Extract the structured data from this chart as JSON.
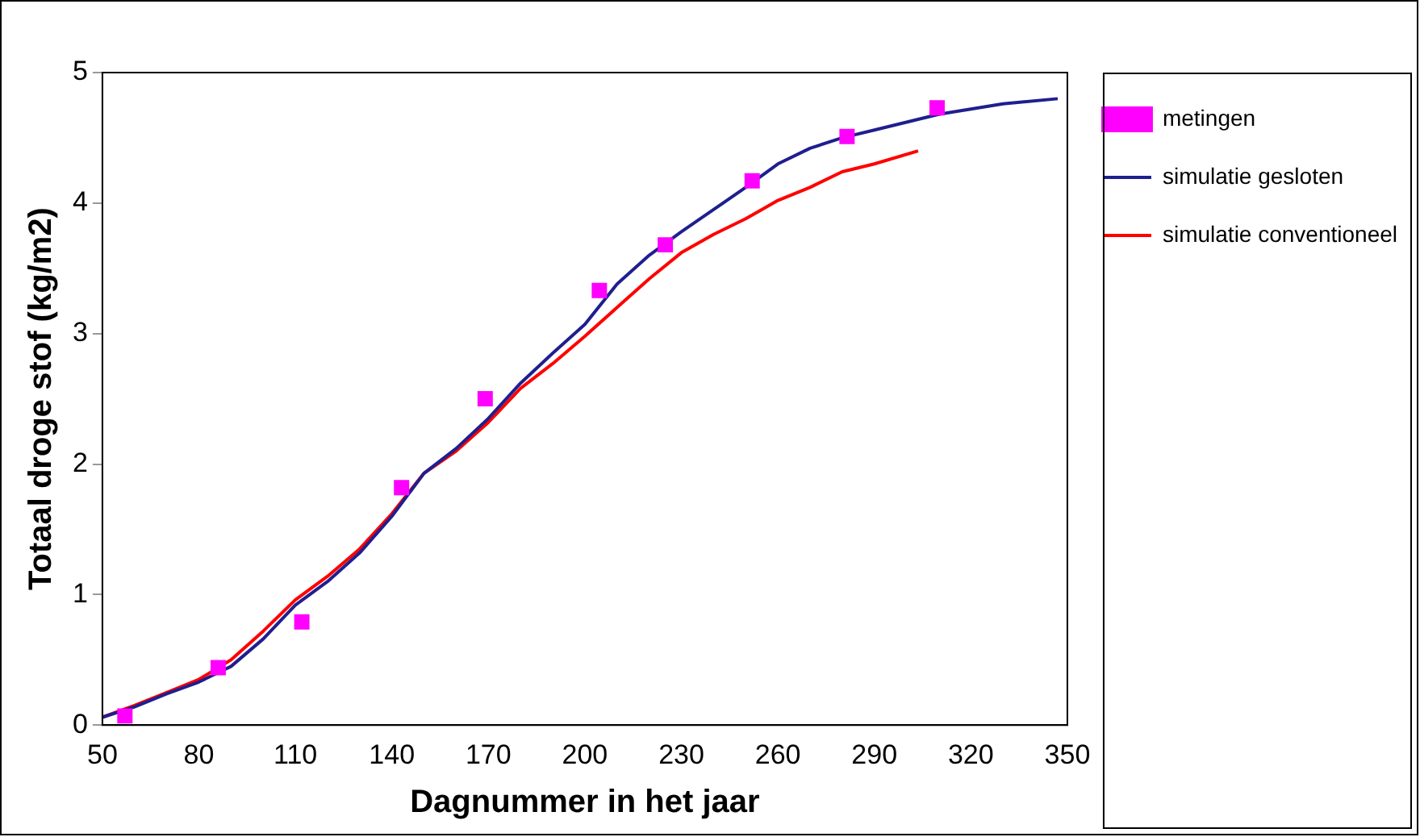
{
  "chart_data": {
    "type": "line",
    "xlabel": "Dagnummer in het jaar",
    "ylabel": "Totaal droge stof (kg/m2)",
    "xlim": [
      50,
      350
    ],
    "xticks": [
      50,
      80,
      110,
      140,
      170,
      200,
      230,
      260,
      290,
      320,
      350
    ],
    "ylim": [
      0,
      5
    ],
    "yticks": [
      0,
      1,
      2,
      3,
      4,
      5
    ],
    "grid": false,
    "legend": "right",
    "series": [
      {
        "name": "metingen",
        "type": "scatter",
        "marker": "square",
        "color": "#ff00ff",
        "x": [
          57,
          86,
          112,
          143,
          169,
          204.5,
          225,
          252,
          281.5,
          309.5
        ],
        "values": [
          0.07,
          0.44,
          0.79,
          1.82,
          2.5,
          3.33,
          3.68,
          4.17,
          4.51,
          4.73
        ]
      },
      {
        "name": "simulatie gesloten",
        "marker": "none",
        "color": "#1f1f8f",
        "x": [
          50,
          60,
          70,
          80,
          90,
          100,
          110,
          120,
          130,
          140,
          150,
          160,
          170,
          180,
          190,
          200,
          210,
          220,
          230,
          240,
          250,
          260,
          270,
          280,
          290,
          300,
          310,
          320,
          330,
          347
        ],
        "values": [
          0.06,
          0.14,
          0.24,
          0.33,
          0.45,
          0.66,
          0.92,
          1.1,
          1.32,
          1.6,
          1.93,
          2.12,
          2.35,
          2.62,
          2.85,
          3.07,
          3.38,
          3.6,
          3.78,
          3.95,
          4.12,
          4.3,
          4.42,
          4.5,
          4.56,
          4.62,
          4.68,
          4.72,
          4.76,
          4.8
        ]
      },
      {
        "name": "simulatie conventioneel",
        "marker": "none",
        "color": "#ff0000",
        "x": [
          50,
          60,
          70,
          80,
          90,
          100,
          110,
          120,
          130,
          140,
          150,
          160,
          170,
          180,
          190,
          200,
          210,
          220,
          230,
          240,
          250,
          260,
          270,
          280,
          290,
          303.6
        ],
        "values": [
          0.06,
          0.15,
          0.25,
          0.35,
          0.5,
          0.72,
          0.96,
          1.14,
          1.35,
          1.62,
          1.93,
          2.1,
          2.32,
          2.58,
          2.77,
          2.98,
          3.2,
          3.42,
          3.62,
          3.76,
          3.88,
          4.02,
          4.12,
          4.24,
          4.3,
          4.4
        ]
      }
    ]
  }
}
